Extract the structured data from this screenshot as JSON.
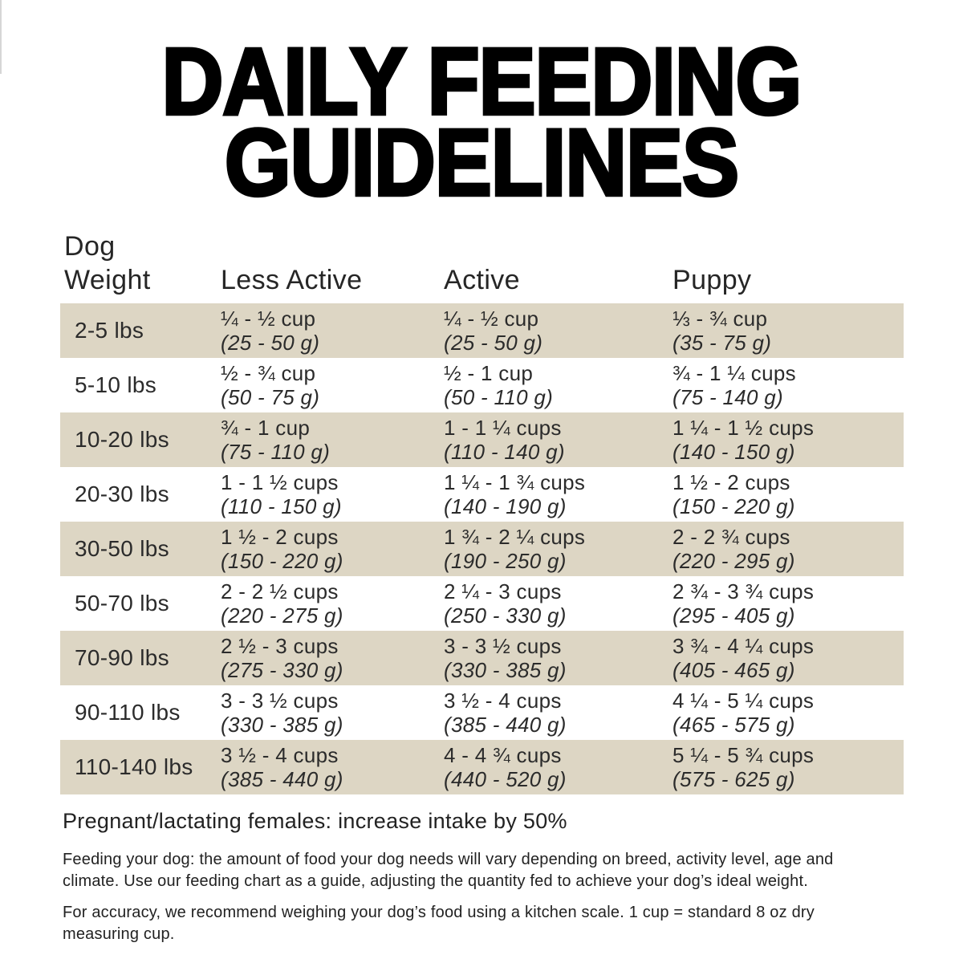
{
  "title": {
    "line1": "DAILY FEEDING",
    "line2": "GUIDELINES"
  },
  "table_headers": {
    "weight_line1": "Dog",
    "weight_line2": "Weight",
    "less_active": "Less Active",
    "active": "Active",
    "puppy": "Puppy"
  },
  "chart_data": {
    "type": "table",
    "title": "DAILY FEEDING GUIDELINES",
    "columns": [
      "Dog Weight",
      "Less Active",
      "Active",
      "Puppy"
    ],
    "rows": [
      {
        "weight": "2-5 lbs",
        "less_active": {
          "cups": "¼ - ½ cup",
          "grams": "(25 - 50 g)"
        },
        "active": {
          "cups": "¼ - ½ cup",
          "grams": "(25 - 50 g)"
        },
        "puppy": {
          "cups": "⅓ - ¾ cup",
          "grams": "(35 - 75 g)"
        }
      },
      {
        "weight": "5-10 lbs",
        "less_active": {
          "cups": "½ - ¾ cup",
          "grams": "(50 - 75 g)"
        },
        "active": {
          "cups": "½ - 1 cup",
          "grams": "(50 - 110 g)"
        },
        "puppy": {
          "cups": "¾ - 1 ¼ cups",
          "grams": "(75 - 140 g)"
        }
      },
      {
        "weight": "10-20 lbs",
        "less_active": {
          "cups": "¾ - 1 cup",
          "grams": "(75 - 110 g)"
        },
        "active": {
          "cups": "1 - 1 ¼ cups",
          "grams": "(110 - 140 g)"
        },
        "puppy": {
          "cups": "1 ¼ - 1 ½ cups",
          "grams": "(140 - 150 g)"
        }
      },
      {
        "weight": "20-30 lbs",
        "less_active": {
          "cups": "1 - 1 ½ cups",
          "grams": "(110 - 150 g)"
        },
        "active": {
          "cups": "1 ¼ - 1 ¾ cups",
          "grams": "(140 - 190 g)"
        },
        "puppy": {
          "cups": "1 ½ - 2 cups",
          "grams": "(150 - 220 g)"
        }
      },
      {
        "weight": "30-50 lbs",
        "less_active": {
          "cups": "1 ½ - 2 cups",
          "grams": "(150 - 220 g)"
        },
        "active": {
          "cups": "1 ¾ - 2 ¼ cups",
          "grams": "(190 - 250 g)"
        },
        "puppy": {
          "cups": "2 - 2 ¾ cups",
          "grams": "(220 - 295 g)"
        }
      },
      {
        "weight": "50-70 lbs",
        "less_active": {
          "cups": "2 - 2 ½ cups",
          "grams": "(220 - 275 g)"
        },
        "active": {
          "cups": "2 ¼ - 3 cups",
          "grams": "(250 - 330 g)"
        },
        "puppy": {
          "cups": "2 ¾ - 3 ¾ cups",
          "grams": "(295 - 405 g)"
        }
      },
      {
        "weight": "70-90 lbs",
        "less_active": {
          "cups": "2 ½ - 3 cups",
          "grams": "(275 - 330 g)"
        },
        "active": {
          "cups": "3 - 3 ½ cups",
          "grams": "(330 - 385 g)"
        },
        "puppy": {
          "cups": "3 ¾ - 4 ¼ cups",
          "grams": "(405 - 465 g)"
        }
      },
      {
        "weight": "90-110 lbs",
        "less_active": {
          "cups": "3 - 3 ½ cups",
          "grams": "(330 - 385 g)"
        },
        "active": {
          "cups": "3 ½ - 4 cups",
          "grams": "(385 - 440 g)"
        },
        "puppy": {
          "cups": "4 ¼ - 5 ¼ cups",
          "grams": "(465 - 575 g)"
        }
      },
      {
        "weight": "110-140 lbs",
        "less_active": {
          "cups": "3 ½ - 4 cups",
          "grams": "(385 - 440 g)"
        },
        "active": {
          "cups": "4 - 4 ¾ cups",
          "grams": "(440 - 520 g)"
        },
        "puppy": {
          "cups": "5 ¼ - 5 ¾ cups",
          "grams": "(575 - 625 g)"
        }
      }
    ]
  },
  "notes": {
    "pregnant": "Pregnant/lactating females: increase intake by 50%",
    "feeding": "Feeding your dog: the amount of food your dog needs will vary depending on breed, activity level, age and climate. Use our feeding chart as a guide, adjusting the quantity fed to achieve your dog’s ideal weight.",
    "accuracy": "For accuracy, we recommend weighing your dog’s food using a kitchen scale. 1 cup = standard 8 oz dry measuring cup."
  },
  "colors": {
    "row_highlight": "#ddd6c4",
    "text": "#2b2b2b",
    "title": "#000000",
    "background": "#ffffff"
  }
}
